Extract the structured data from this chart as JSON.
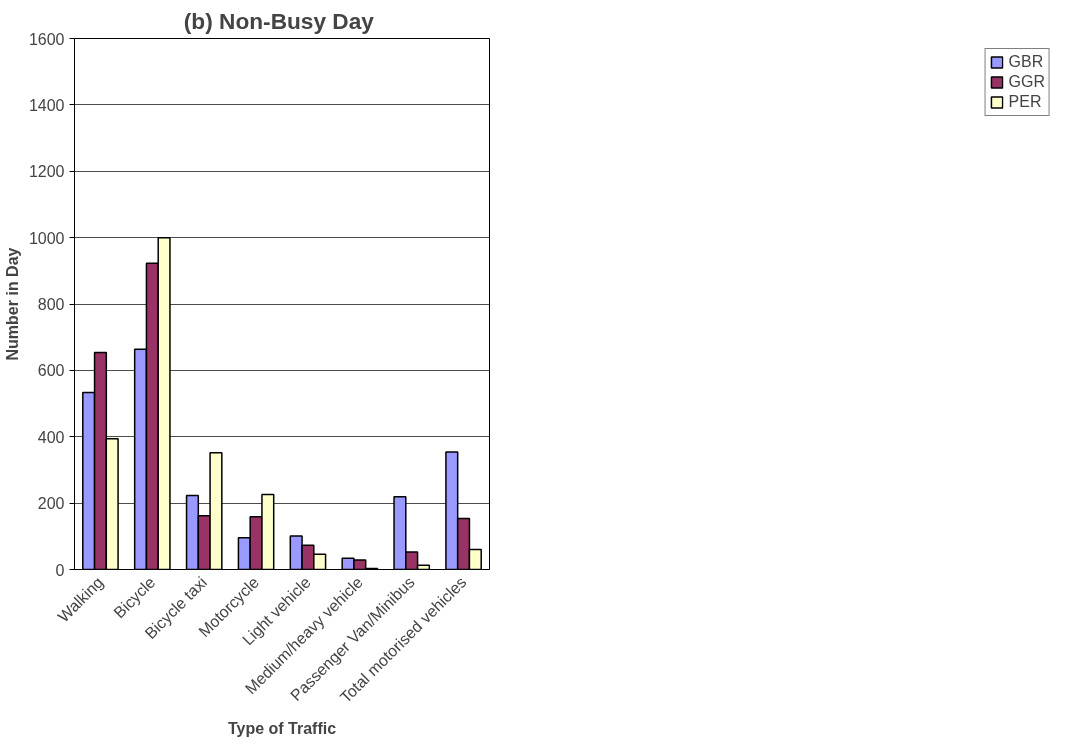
{
  "chart_data": {
    "type": "bar",
    "title": "(b)  Non-Busy Day",
    "xlabel": "Type of Traffic",
    "ylabel": "Number in Day",
    "categories": [
      "Walking",
      "Bicycle",
      "Bicycle taxi",
      "Motorcycle",
      "Light vehicle",
      "Medium/heavy vehicle",
      "Passenger Van/Minibus",
      "Total motorised vehicles"
    ],
    "series": [
      {
        "name": "GBR",
        "color": "#9999ff",
        "values": [
          533,
          664,
          223,
          96,
          101,
          34,
          219,
          354
        ]
      },
      {
        "name": "GGR",
        "color": "#993366",
        "values": [
          654,
          923,
          162,
          159,
          73,
          29,
          53,
          154
        ]
      },
      {
        "name": "PER",
        "color": "#ffffcc",
        "values": [
          394,
          1000,
          352,
          226,
          46,
          3,
          13,
          60
        ]
      }
    ],
    "ylim": [
      0,
      1600
    ],
    "yticks": [
      0,
      200,
      400,
      600,
      800,
      1000,
      1200,
      1400,
      1600
    ],
    "grid": "y",
    "legend": "right"
  }
}
